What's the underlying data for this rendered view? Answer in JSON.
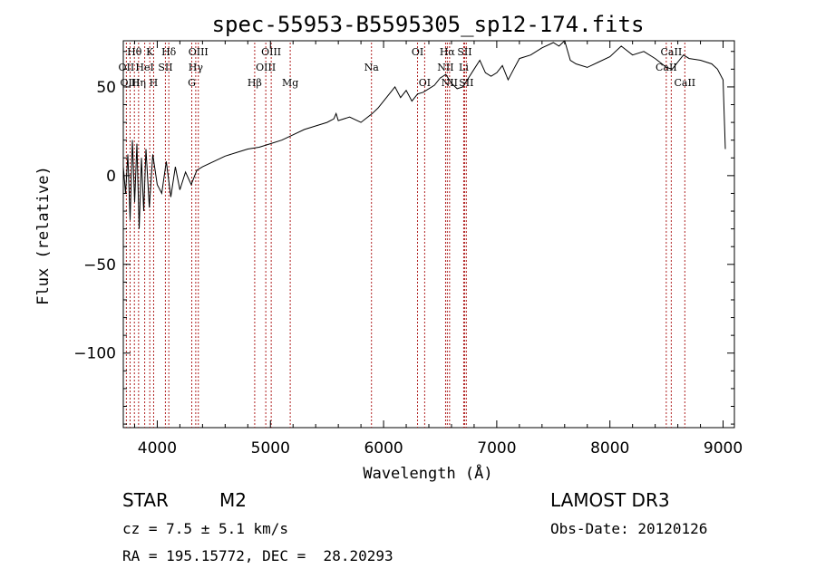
{
  "chart_data": {
    "type": "line",
    "title": "spec-55953-B5595305_sp12-174.fits",
    "xlabel": "Wavelength (Å)",
    "ylabel": "Flux (relative)",
    "xlim": [
      3700,
      9100
    ],
    "ylim": [
      -142,
      76
    ],
    "x_ticks": [
      4000,
      5000,
      6000,
      7000,
      8000,
      9000
    ],
    "x_tick_labels": [
      "4000",
      "5000",
      "6000",
      "7000",
      "8000",
      "9000"
    ],
    "y_ticks": [
      -100,
      -50,
      0,
      50
    ],
    "y_tick_labels": [
      "−100",
      "−50",
      "0",
      "50"
    ],
    "series": [
      {
        "name": "flux",
        "x": [
          3700,
          3720,
          3740,
          3760,
          3780,
          3800,
          3820,
          3840,
          3860,
          3880,
          3900,
          3930,
          3960,
          4000,
          4040,
          4080,
          4120,
          4160,
          4200,
          4250,
          4300,
          4350,
          4400,
          4500,
          4600,
          4700,
          4800,
          4900,
          5000,
          5100,
          5200,
          5300,
          5400,
          5500,
          5560,
          5580,
          5600,
          5700,
          5800,
          5900,
          5950,
          6000,
          6050,
          6100,
          6150,
          6200,
          6250,
          6300,
          6350,
          6400,
          6450,
          6500,
          6550,
          6600,
          6650,
          6700,
          6750,
          6800,
          6850,
          6900,
          6950,
          7000,
          7050,
          7100,
          7150,
          7200,
          7300,
          7400,
          7500,
          7550,
          7600,
          7650,
          7700,
          7800,
          7900,
          8000,
          8100,
          8200,
          8300,
          8400,
          8500,
          8550,
          8600,
          8650,
          8700,
          8800,
          8900,
          8950,
          9000,
          9020
        ],
        "y": [
          5,
          -10,
          12,
          -25,
          20,
          -15,
          18,
          -30,
          10,
          -20,
          15,
          -18,
          12,
          -5,
          -10,
          8,
          -12,
          5,
          -8,
          2,
          -5,
          3,
          5,
          8,
          11,
          13,
          15,
          16,
          18,
          20,
          23,
          26,
          28,
          30,
          32,
          35,
          31,
          33,
          30,
          35,
          38,
          42,
          46,
          50,
          44,
          48,
          42,
          46,
          47,
          49,
          51,
          55,
          57,
          52,
          49,
          50,
          55,
          60,
          65,
          58,
          56,
          58,
          62,
          54,
          60,
          66,
          68,
          72,
          75,
          73,
          76,
          65,
          63,
          61,
          64,
          67,
          73,
          68,
          70,
          66,
          61,
          60,
          64,
          68,
          66,
          65,
          63,
          60,
          54,
          15
        ]
      }
    ],
    "line_color": "#000000",
    "marker_color": "#b02020",
    "spectral_lines": [
      {
        "label": "Hθ",
        "wavelength": 3798,
        "row": 0
      },
      {
        "label": "OII",
        "wavelength": 3727,
        "row": 1
      },
      {
        "label": "OIII",
        "wavelength": 3760,
        "row": 2
      },
      {
        "label": "K",
        "wavelength": 3934,
        "row": 0
      },
      {
        "label": "HeI",
        "wavelength": 3889,
        "row": 1
      },
      {
        "label": "Hη",
        "wavelength": 3835,
        "row": 2
      },
      {
        "label": "Hδ",
        "wavelength": 4102,
        "row": 0
      },
      {
        "label": "SII",
        "wavelength": 4072,
        "row": 1
      },
      {
        "label": "H",
        "wavelength": 3968,
        "row": 2
      },
      {
        "label": "OIII",
        "wavelength": 4363,
        "row": 0
      },
      {
        "label": "Hγ",
        "wavelength": 4340,
        "row": 1
      },
      {
        "label": "G",
        "wavelength": 4305,
        "row": 2
      },
      {
        "label": "OIII",
        "wavelength": 5007,
        "row": 0
      },
      {
        "label": "OIII",
        "wavelength": 4959,
        "row": 1
      },
      {
        "label": "Hβ",
        "wavelength": 4861,
        "row": 2
      },
      {
        "label": "Mg",
        "wavelength": 5175,
        "row": 2
      },
      {
        "label": "Na",
        "wavelength": 5893,
        "row": 1
      },
      {
        "label": "OI",
        "wavelength": 6300,
        "row": 0
      },
      {
        "label": "OI",
        "wavelength": 6363,
        "row": 2
      },
      {
        "label": "Hα",
        "wavelength": 6563,
        "row": 0
      },
      {
        "label": "NII",
        "wavelength": 6548,
        "row": 1
      },
      {
        "label": "NII",
        "wavelength": 6583,
        "row": 2
      },
      {
        "label": "SII",
        "wavelength": 6716,
        "row": 0
      },
      {
        "label": "Li",
        "wavelength": 6708,
        "row": 1
      },
      {
        "label": "SII",
        "wavelength": 6731,
        "row": 2
      },
      {
        "label": "CaII",
        "wavelength": 8542,
        "row": 0
      },
      {
        "label": "CaII",
        "wavelength": 8498,
        "row": 1
      },
      {
        "label": "CaII",
        "wavelength": 8662,
        "row": 2
      }
    ]
  },
  "info": {
    "object_class": "STAR",
    "subclass": "M2",
    "cz": "cz = 7.5 ± 5.1 km/s",
    "coords": "RA = 195.15772, DEC =  28.20293",
    "survey": "LAMOST DR3",
    "obs_date": "Obs-Date: 20120126"
  }
}
